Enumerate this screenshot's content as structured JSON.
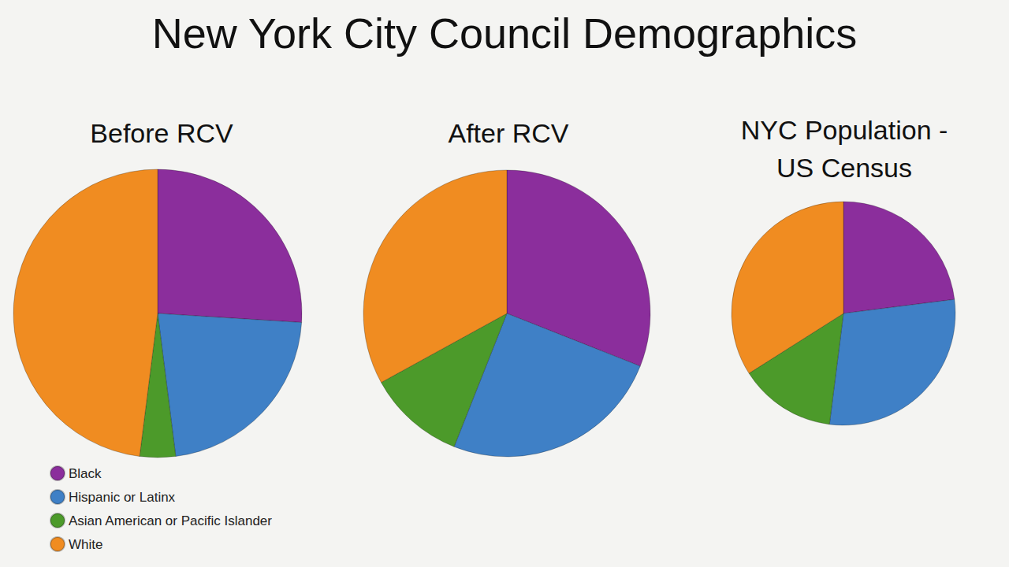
{
  "chart_data": {
    "type": "pie",
    "title": "New York City Council Demographics",
    "categories": [
      "Black",
      "Hispanic or Latinx",
      "Asian American or Pacific Islander",
      "White"
    ],
    "colors": [
      "#8b2e9c",
      "#3f80c6",
      "#4c9a2a",
      "#f08c21"
    ],
    "series": [
      {
        "name": "Before RCV",
        "values": [
          26,
          22,
          4,
          48
        ]
      },
      {
        "name": "After RCV",
        "values": [
          31,
          25,
          11,
          33
        ]
      },
      {
        "name": "NYC Population - US Census",
        "values": [
          23,
          29,
          14,
          34
        ]
      }
    ],
    "legend": "bottom-left",
    "data_labels": false
  }
}
